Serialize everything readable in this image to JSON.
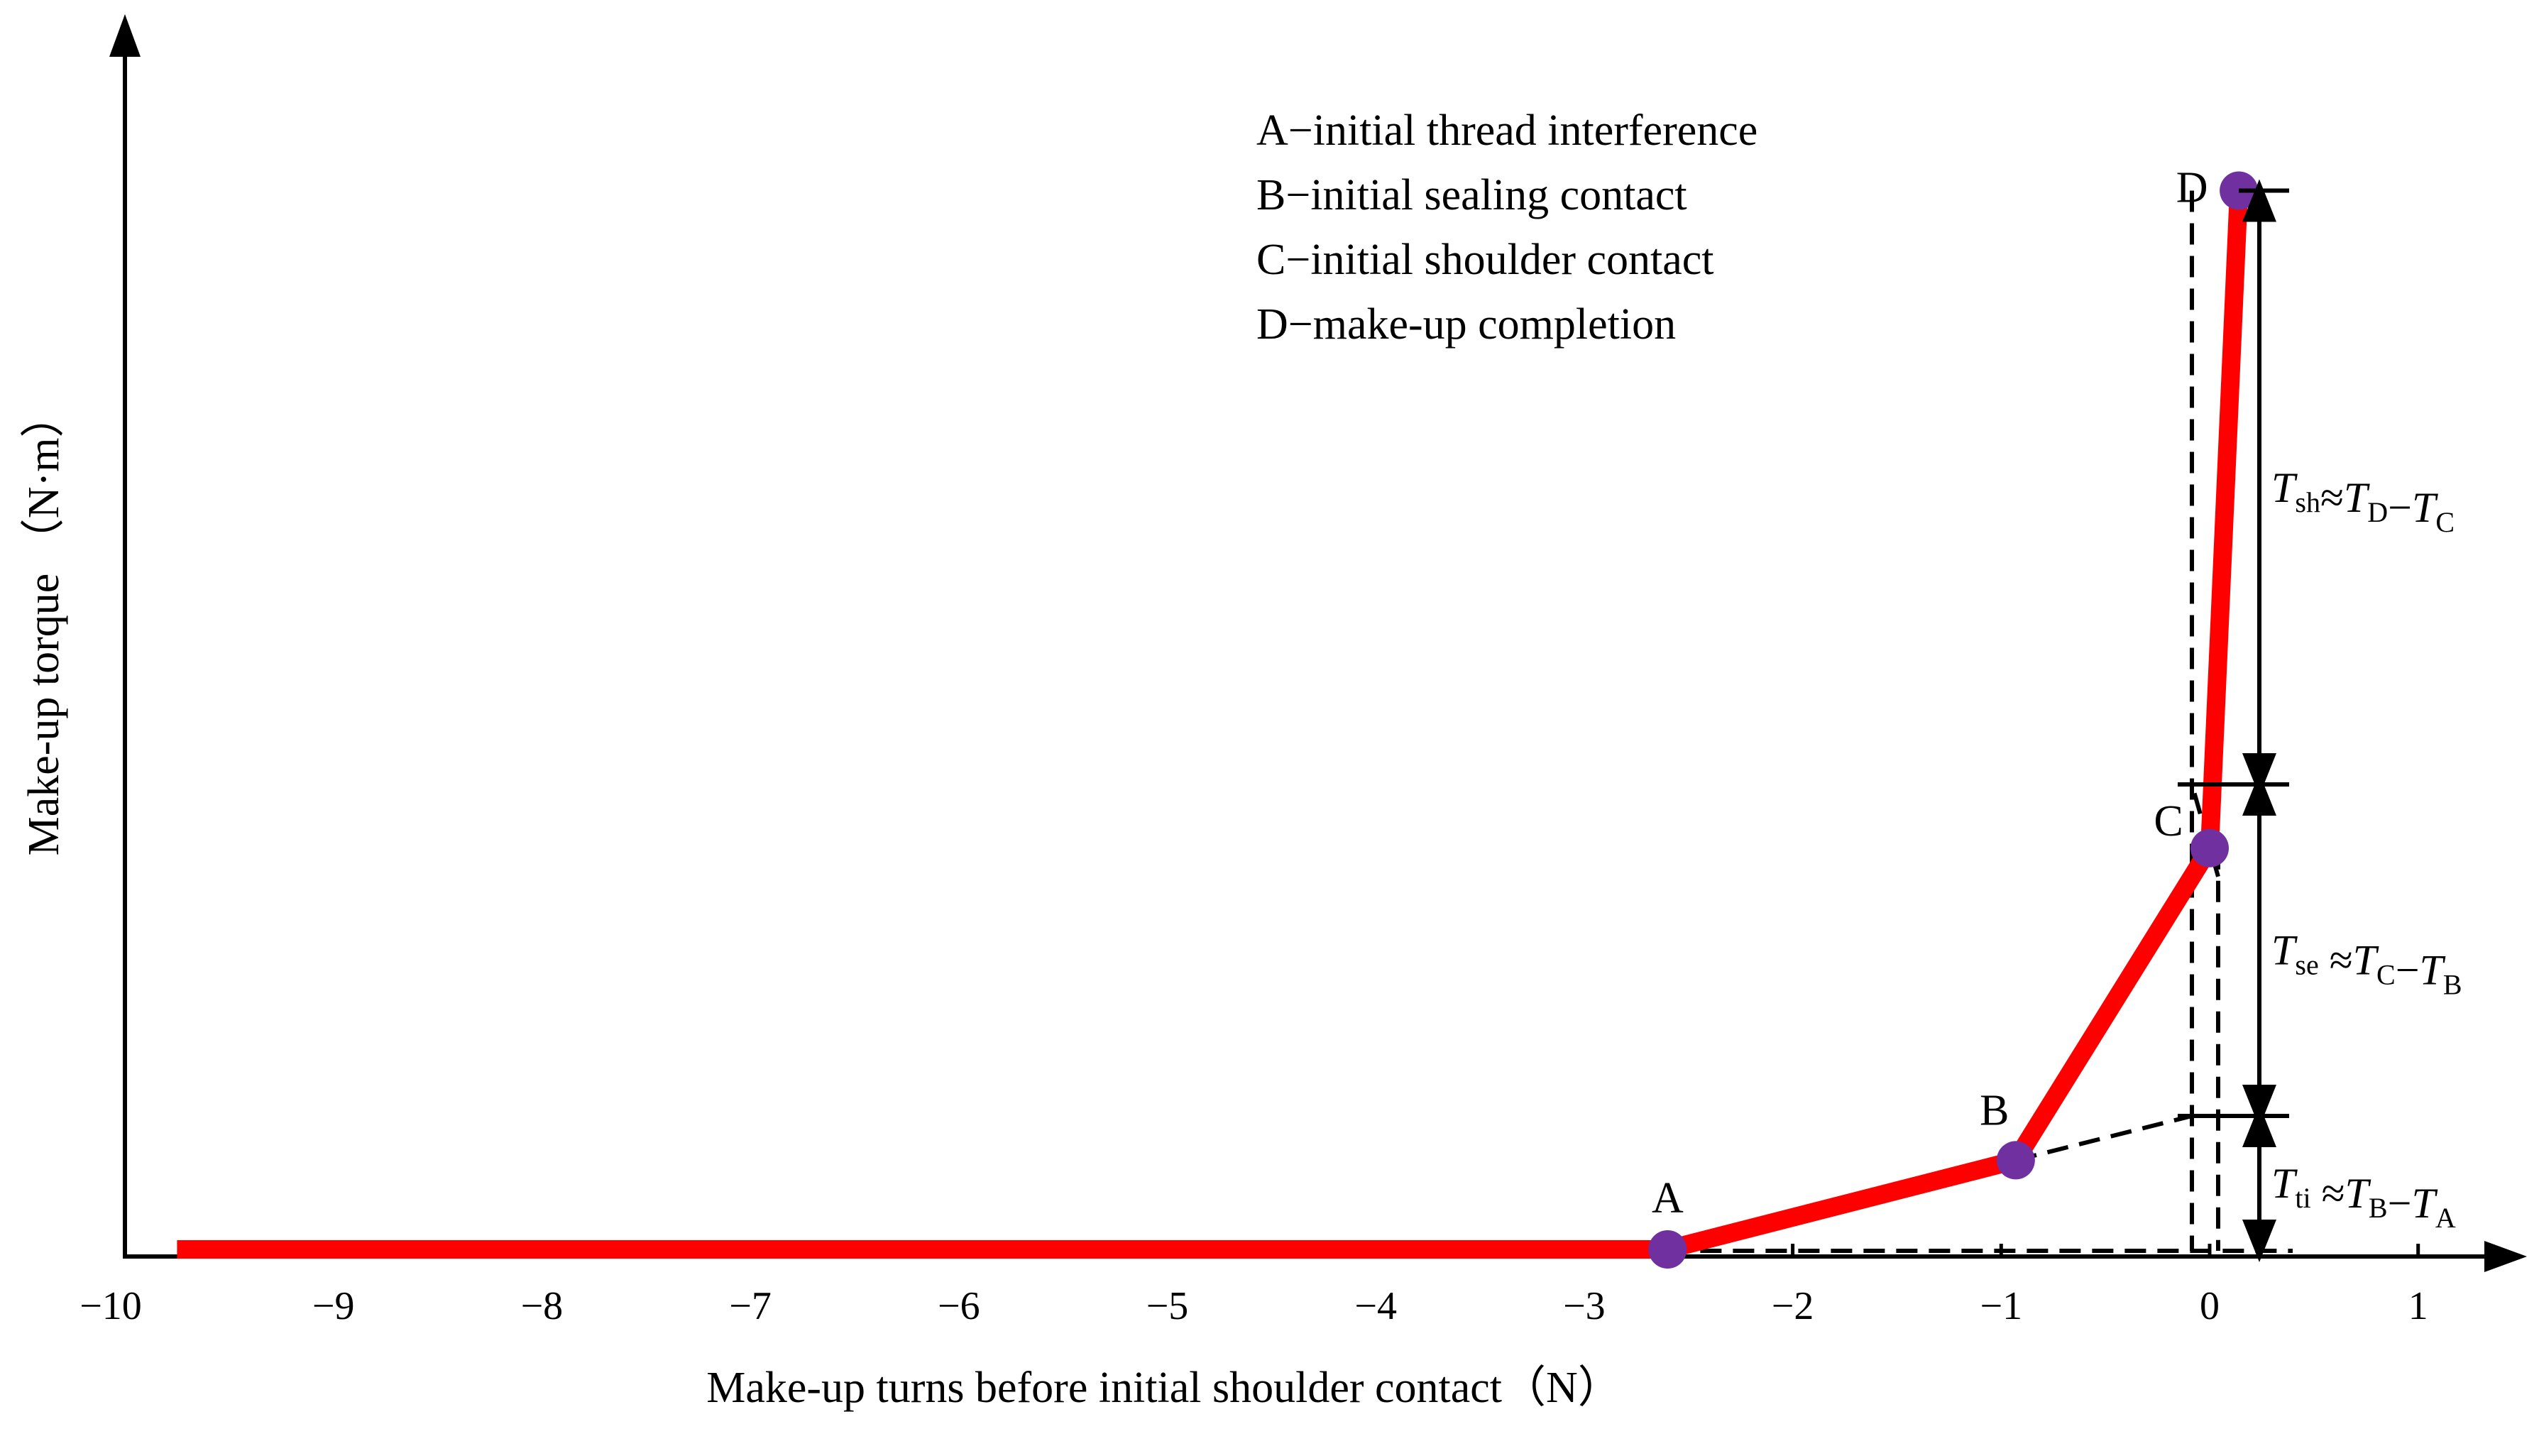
{
  "chart_data": {
    "type": "line",
    "xlabel": "Make-up turns before initial shoulder contact（N）",
    "ylabel": "Make-up torque （N·m）",
    "xlim": [
      -10,
      1.7
    ],
    "ylim": [
      0,
      1.0
    ],
    "y_ticks_shown": false,
    "x_ticks": [
      "−10",
      "−9",
      "−8",
      "−7",
      "−6",
      "−5",
      "−4",
      "−3",
      "−2",
      "−1",
      "0",
      "1"
    ],
    "x_tick_values": [
      -10,
      -9,
      -8,
      -7,
      -6,
      -5,
      -4,
      -3,
      -2,
      -1,
      0,
      1
    ],
    "series": [
      {
        "color": "#ff0000",
        "x": [
          -9.75,
          -2.6,
          -0.93,
          0.0,
          0.14
        ],
        "y": [
          0.0,
          0.0,
          0.08,
          0.36,
          0.95
        ]
      }
    ],
    "points": [
      {
        "label": "A",
        "x": -2.6,
        "y": 0.0
      },
      {
        "label": "B",
        "x": -0.93,
        "y": 0.08
      },
      {
        "label": "C",
        "x": 0.0,
        "y": 0.36
      },
      {
        "label": "D",
        "x": 0.14,
        "y": 0.95
      }
    ],
    "point_color": "#7030a0",
    "legend": [
      "A−initial thread interference",
      "B−initial sealing contact",
      "C−initial shoulder contact",
      "D−make-up completion"
    ],
    "legend_position": "top-right",
    "annotations": [
      {
        "main": "T",
        "sub": "sh",
        "rest": "≈T",
        "sub2": "D",
        "tail": "−T",
        "sub3": "C"
      },
      {
        "main": "T",
        "sub": "se",
        "rest": " ≈T",
        "sub2": "C",
        "tail": "−T",
        "sub3": "B"
      },
      {
        "main": "T",
        "sub": "ti",
        "rest": " ≈T",
        "sub2": "B",
        "tail": "−T",
        "sub3": "A"
      }
    ]
  }
}
